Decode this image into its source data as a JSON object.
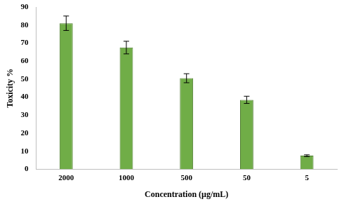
{
  "chart_data": {
    "type": "bar",
    "x_label": "Concentration (µg/mL)",
    "y_label": "Toxicity %",
    "categories": [
      "2000",
      "1000",
      "500",
      "50",
      "5"
    ],
    "values": [
      81,
      67.5,
      50.5,
      38.5,
      7.5
    ],
    "errors": [
      4,
      3.5,
      2.5,
      2,
      0.5
    ],
    "color": "#70ad47",
    "ylim": [
      0,
      90
    ],
    "yticks": [
      0,
      10,
      20,
      30,
      40,
      50,
      60,
      70,
      80,
      90
    ],
    "grid": false
  }
}
